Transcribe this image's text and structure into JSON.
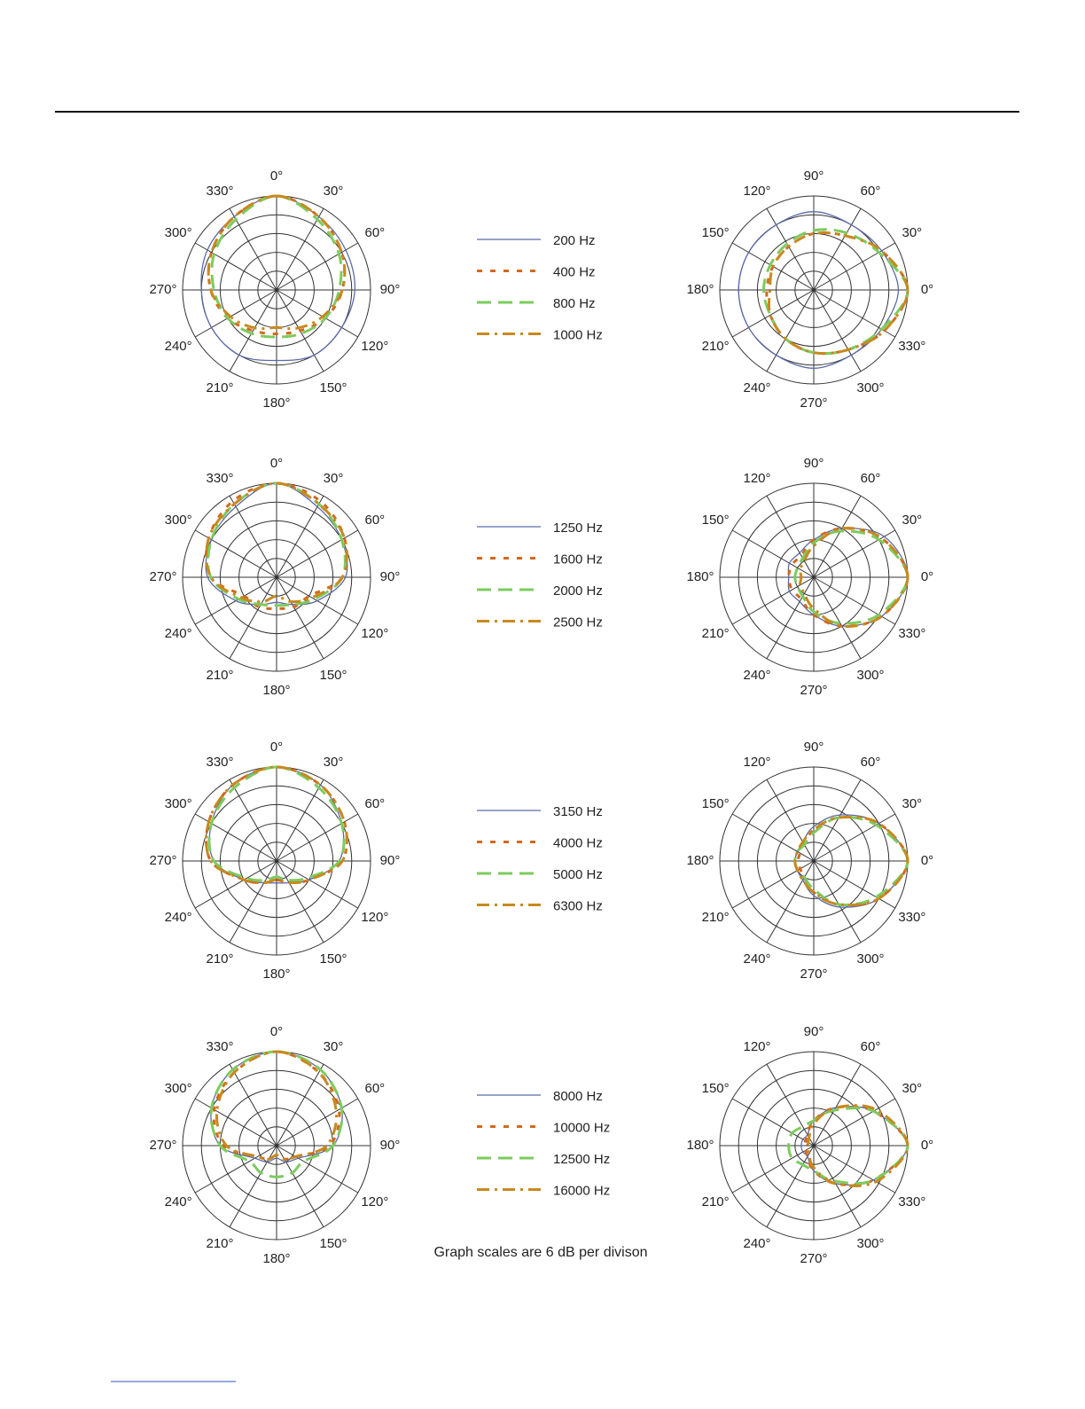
{
  "chart_data": [
    {
      "type": "polar",
      "zero": "top",
      "direction": "clockwise",
      "rlim": [
        -30,
        0
      ],
      "rticks": [
        -24,
        -18,
        -12,
        -6,
        0
      ],
      "theta": [
        {
          "value": 0,
          "label": "0°"
        },
        {
          "value": 30,
          "label": "30°"
        },
        {
          "value": 60,
          "label": "60°"
        },
        {
          "value": 90,
          "label": "90°"
        },
        {
          "value": 120,
          "label": "120°"
        },
        {
          "value": 150,
          "label": "150°"
        },
        {
          "value": 180,
          "label": "180°"
        },
        {
          "value": 210,
          "label": "210°"
        },
        {
          "value": 240,
          "label": "240°"
        },
        {
          "value": 270,
          "label": "270°"
        },
        {
          "value": 300,
          "label": "300°"
        },
        {
          "value": 330,
          "label": "330°"
        }
      ],
      "series": [
        {
          "name": "200 Hz",
          "color": "#5b6aa8",
          "style": "solid",
          "values": [
            0,
            -3,
            -4.5,
            -5,
            -6,
            -6,
            -7.5,
            -6,
            -6,
            -6,
            -4.5,
            -3
          ]
        },
        {
          "name": "400 Hz",
          "color": "#d2691e",
          "style": "dotted",
          "values": [
            0,
            -3,
            -6,
            -9,
            -12,
            -15,
            -16,
            -15,
            -12,
            -9,
            -6,
            -3
          ]
        },
        {
          "name": "800 Hz",
          "color": "#7ccb5e",
          "style": "dashed",
          "values": [
            0,
            -4,
            -7,
            -10,
            -12,
            -14,
            -15,
            -14,
            -12,
            -10,
            -7,
            -4
          ]
        },
        {
          "name": "1000 Hz",
          "color": "#c8891e",
          "style": "dashdot",
          "values": [
            0,
            -3,
            -6,
            -9,
            -13,
            -16,
            -18,
            -16,
            -13,
            -9,
            -6,
            -3
          ]
        }
      ]
    },
    {
      "type": "polar",
      "zero": "right",
      "direction": "counterclockwise",
      "rlim": [
        -30,
        0
      ],
      "rticks": [
        -24,
        -18,
        -12,
        -6,
        0
      ],
      "theta": [
        {
          "value": 0,
          "label": "0°"
        },
        {
          "value": 30,
          "label": "30°"
        },
        {
          "value": 60,
          "label": "60°"
        },
        {
          "value": 90,
          "label": "90°"
        },
        {
          "value": 120,
          "label": "120°"
        },
        {
          "value": 150,
          "label": "150°"
        },
        {
          "value": 180,
          "label": "180°"
        },
        {
          "value": 210,
          "label": "210°"
        },
        {
          "value": 240,
          "label": "240°"
        },
        {
          "value": 270,
          "label": "270°"
        },
        {
          "value": 300,
          "label": "300°"
        },
        {
          "value": 330,
          "label": "330°"
        }
      ],
      "series": [
        {
          "color": "#5b6aa8",
          "style": "solid",
          "values": [
            -3,
            -5,
            -6,
            -5,
            -6,
            -6,
            -6,
            -6,
            -6,
            -5,
            -6,
            -5
          ]
        },
        {
          "color": "#d2691e",
          "style": "dotted",
          "values": [
            0,
            -5,
            -10,
            -12,
            -14,
            -15,
            -15,
            -14,
            -12,
            -10,
            -8,
            -4
          ]
        },
        {
          "color": "#7ccb5e",
          "style": "dashed",
          "values": [
            0,
            -6,
            -9,
            -11,
            -13,
            -14,
            -14,
            -14,
            -12,
            -10,
            -8,
            -5
          ]
        },
        {
          "color": "#c8891e",
          "style": "dashdot",
          "values": [
            0,
            -5,
            -10,
            -12,
            -14,
            -15,
            -16,
            -14,
            -12,
            -10,
            -8,
            -4
          ]
        }
      ]
    },
    {
      "type": "polar",
      "zero": "top",
      "direction": "clockwise",
      "rlim": [
        -30,
        0
      ],
      "rticks": [
        -24,
        -18,
        -12,
        -6,
        0
      ],
      "theta": [
        {
          "value": 0,
          "label": "0°"
        },
        {
          "value": 30,
          "label": "30°"
        },
        {
          "value": 60,
          "label": "60°"
        },
        {
          "value": 90,
          "label": "90°"
        },
        {
          "value": 120,
          "label": "120°"
        },
        {
          "value": 150,
          "label": "150°"
        },
        {
          "value": 180,
          "label": "180°"
        },
        {
          "value": 210,
          "label": "210°"
        },
        {
          "value": 240,
          "label": "240°"
        },
        {
          "value": 270,
          "label": "270°"
        },
        {
          "value": 300,
          "label": "300°"
        },
        {
          "value": 330,
          "label": "330°"
        }
      ],
      "series": [
        {
          "name": "1250 Hz",
          "color": "#5b6aa8",
          "style": "solid",
          "values": [
            0,
            -4,
            -6,
            -8,
            -15,
            -20,
            -22,
            -20,
            -15,
            -8,
            -6,
            -4
          ]
        },
        {
          "name": "1600 Hz",
          "color": "#d2691e",
          "style": "dotted",
          "values": [
            0,
            -2,
            -5,
            -9,
            -18,
            -19,
            -20,
            -19,
            -18,
            -9,
            -5,
            -2
          ]
        },
        {
          "name": "2000 Hz",
          "color": "#7ccb5e",
          "style": "dashed",
          "values": [
            0,
            -3,
            -6,
            -9,
            -16,
            -20,
            -21,
            -20,
            -16,
            -9,
            -6,
            -3
          ]
        },
        {
          "name": "2500 Hz",
          "color": "#c8891e",
          "style": "dashdot",
          "values": [
            0,
            -3,
            -5,
            -9,
            -17,
            -21,
            -24,
            -21,
            -17,
            -9,
            -5,
            -3
          ]
        }
      ]
    },
    {
      "type": "polar",
      "zero": "right",
      "direction": "counterclockwise",
      "rlim": [
        -30,
        0
      ],
      "rticks": [
        -24,
        -18,
        -12,
        -6,
        0
      ],
      "theta": [
        {
          "value": 0,
          "label": "0°"
        },
        {
          "value": 30,
          "label": "30°"
        },
        {
          "value": 60,
          "label": "60°"
        },
        {
          "value": 90,
          "label": "90°"
        },
        {
          "value": 120,
          "label": "120°"
        },
        {
          "value": 150,
          "label": "150°"
        },
        {
          "value": 180,
          "label": "180°"
        },
        {
          "value": 210,
          "label": "210°"
        },
        {
          "value": 240,
          "label": "240°"
        },
        {
          "value": 270,
          "label": "270°"
        },
        {
          "value": 300,
          "label": "300°"
        },
        {
          "value": 330,
          "label": "330°"
        }
      ],
      "series": [
        {
          "color": "#5b6aa8",
          "style": "solid",
          "values": [
            0,
            -4,
            -12,
            -18,
            -21,
            -21,
            -22,
            -21,
            -21,
            -18,
            -12,
            -5
          ]
        },
        {
          "color": "#d2691e",
          "style": "dotted",
          "values": [
            0,
            -5,
            -12,
            -18,
            -22,
            -22,
            -22,
            -22,
            -22,
            -18,
            -12,
            -5
          ]
        },
        {
          "color": "#7ccb5e",
          "style": "dashed",
          "values": [
            0,
            -6,
            -13,
            -19,
            -23,
            -24,
            -24,
            -24,
            -23,
            -19,
            -13,
            -6
          ]
        },
        {
          "color": "#c8891e",
          "style": "dashdot",
          "values": [
            0,
            -5,
            -12,
            -20,
            -24,
            -25,
            -26,
            -25,
            -24,
            -20,
            -12,
            -5
          ]
        }
      ]
    },
    {
      "type": "polar",
      "zero": "top",
      "direction": "clockwise",
      "rlim": [
        -30,
        0
      ],
      "rticks": [
        -24,
        -18,
        -12,
        -6,
        0
      ],
      "theta": [
        {
          "value": 0,
          "label": "0°"
        },
        {
          "value": 30,
          "label": "30°"
        },
        {
          "value": 60,
          "label": "60°"
        },
        {
          "value": 90,
          "label": "90°"
        },
        {
          "value": 120,
          "label": "120°"
        },
        {
          "value": 150,
          "label": "150°"
        },
        {
          "value": 180,
          "label": "180°"
        },
        {
          "value": 210,
          "label": "210°"
        },
        {
          "value": 240,
          "label": "240°"
        },
        {
          "value": 270,
          "label": "270°"
        },
        {
          "value": 300,
          "label": "300°"
        },
        {
          "value": 330,
          "label": "330°"
        }
      ],
      "series": [
        {
          "name": "3150 Hz",
          "color": "#5b6aa8",
          "style": "solid",
          "values": [
            0,
            -2,
            -6,
            -10,
            -18,
            -22,
            -23,
            -22,
            -18,
            -10,
            -6,
            -2
          ]
        },
        {
          "name": "4000 Hz",
          "color": "#d2691e",
          "style": "dotted",
          "values": [
            0,
            -2,
            -5,
            -9,
            -18,
            -22,
            -24,
            -22,
            -18,
            -9,
            -5,
            -2
          ]
        },
        {
          "name": "5000 Hz",
          "color": "#7ccb5e",
          "style": "dashed",
          "values": [
            0,
            -3,
            -6,
            -10,
            -19,
            -23,
            -25,
            -23,
            -19,
            -10,
            -6,
            -3
          ]
        },
        {
          "name": "6300 Hz",
          "color": "#c8891e",
          "style": "dashdot",
          "values": [
            0,
            -2,
            -5,
            -9,
            -18,
            -22,
            -24,
            -22,
            -18,
            -9,
            -5,
            -2
          ]
        }
      ]
    },
    {
      "type": "polar",
      "zero": "right",
      "direction": "counterclockwise",
      "rlim": [
        -30,
        0
      ],
      "rticks": [
        -24,
        -18,
        -12,
        -6,
        0
      ],
      "theta": [
        {
          "value": 0,
          "label": "0°"
        },
        {
          "value": 30,
          "label": "30°"
        },
        {
          "value": 60,
          "label": "60°"
        },
        {
          "value": 90,
          "label": "90°"
        },
        {
          "value": 120,
          "label": "120°"
        },
        {
          "value": 150,
          "label": "150°"
        },
        {
          "value": 180,
          "label": "180°"
        },
        {
          "value": 210,
          "label": "210°"
        },
        {
          "value": 240,
          "label": "240°"
        },
        {
          "value": 270,
          "label": "270°"
        },
        {
          "value": 300,
          "label": "300°"
        },
        {
          "value": 330,
          "label": "330°"
        }
      ],
      "series": [
        {
          "color": "#5b6aa8",
          "style": "solid",
          "values": [
            0,
            -6,
            -13,
            -19,
            -23,
            -24,
            -24,
            -24,
            -23,
            -19,
            -13,
            -6
          ]
        },
        {
          "color": "#d2691e",
          "style": "dotted",
          "values": [
            0,
            -6,
            -14,
            -20,
            -24,
            -25,
            -25,
            -25,
            -24,
            -20,
            -14,
            -6
          ]
        },
        {
          "color": "#7ccb5e",
          "style": "dashed",
          "values": [
            0,
            -7,
            -14,
            -21,
            -24,
            -24,
            -24,
            -24,
            -24,
            -21,
            -14,
            -7
          ]
        },
        {
          "color": "#c8891e",
          "style": "dashdot",
          "values": [
            0,
            -6,
            -14,
            -20,
            -23,
            -24,
            -24,
            -24,
            -23,
            -20,
            -14,
            -6
          ]
        }
      ]
    },
    {
      "type": "polar",
      "zero": "top",
      "direction": "clockwise",
      "rlim": [
        -30,
        0
      ],
      "rticks": [
        -24,
        -18,
        -12,
        -6,
        0
      ],
      "theta": [
        {
          "value": 0,
          "label": "0°"
        },
        {
          "value": 30,
          "label": "30°"
        },
        {
          "value": 60,
          "label": "60°"
        },
        {
          "value": 90,
          "label": "90°"
        },
        {
          "value": 120,
          "label": "120°"
        },
        {
          "value": 150,
          "label": "150°"
        },
        {
          "value": 180,
          "label": "180°"
        },
        {
          "value": 210,
          "label": "210°"
        },
        {
          "value": 240,
          "label": "240°"
        },
        {
          "value": 270,
          "label": "270°"
        },
        {
          "value": 300,
          "label": "300°"
        },
        {
          "value": 330,
          "label": "330°"
        }
      ],
      "series": [
        {
          "name": "8000 Hz",
          "color": "#5b6aa8",
          "style": "solid",
          "values": [
            0,
            -2,
            -6,
            -12,
            -22,
            -24,
            -26,
            -24,
            -22,
            -12,
            -6,
            -2
          ]
        },
        {
          "name": "10000 Hz",
          "color": "#d2691e",
          "style": "dotted",
          "values": [
            0,
            -3,
            -7,
            -13,
            -23,
            -25,
            -27,
            -25,
            -23,
            -13,
            -7,
            -3
          ]
        },
        {
          "name": "12500 Hz",
          "color": "#7ccb5e",
          "style": "dashed",
          "values": [
            0,
            -2,
            -6,
            -12,
            -20,
            -20,
            -20,
            -20,
            -20,
            -12,
            -6,
            -2
          ]
        },
        {
          "name": "16000 Hz",
          "color": "#c8891e",
          "style": "dashdot",
          "values": [
            0,
            -3,
            -8,
            -14,
            -23,
            -25,
            -27,
            -25,
            -23,
            -14,
            -8,
            -3
          ]
        }
      ]
    },
    {
      "type": "polar",
      "zero": "right",
      "direction": "counterclockwise",
      "rlim": [
        -30,
        0
      ],
      "rticks": [
        -24,
        -18,
        -12,
        -6,
        0
      ],
      "theta": [
        {
          "value": 0,
          "label": "0°"
        },
        {
          "value": 30,
          "label": "30°"
        },
        {
          "value": 60,
          "label": "60°"
        },
        {
          "value": 90,
          "label": "90°"
        },
        {
          "value": 120,
          "label": "120°"
        },
        {
          "value": 150,
          "label": "150°"
        },
        {
          "value": 180,
          "label": "180°"
        },
        {
          "value": 210,
          "label": "210°"
        },
        {
          "value": 240,
          "label": "240°"
        },
        {
          "value": 270,
          "label": "270°"
        },
        {
          "value": 300,
          "label": "300°"
        },
        {
          "value": 330,
          "label": "330°"
        }
      ],
      "series": [
        {
          "color": "#5b6aa8",
          "style": "solid",
          "values": [
            0,
            -8,
            -16,
            -22,
            -26,
            -26,
            -26,
            -26,
            -26,
            -22,
            -16,
            -8
          ]
        },
        {
          "color": "#d2691e",
          "style": "dotted",
          "values": [
            0,
            -8,
            -16,
            -22,
            -26,
            -27,
            -27,
            -27,
            -26,
            -22,
            -16,
            -8
          ]
        },
        {
          "color": "#7ccb5e",
          "style": "dashed",
          "values": [
            0,
            -8,
            -17,
            -22,
            -23,
            -22,
            -22,
            -22,
            -23,
            -22,
            -17,
            -8
          ]
        },
        {
          "color": "#c8891e",
          "style": "dashdot",
          "values": [
            0,
            -7,
            -16,
            -23,
            -27,
            -28,
            -28,
            -28,
            -27,
            -23,
            -16,
            -7
          ]
        }
      ]
    }
  ],
  "note": "Graph scales are 6 dB per divison"
}
